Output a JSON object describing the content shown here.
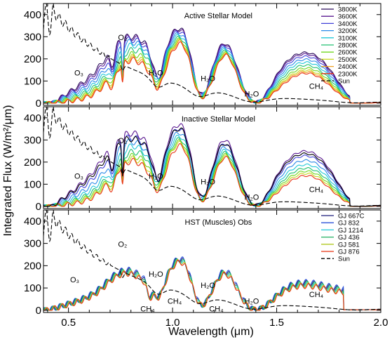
{
  "figure": {
    "ylabel": "Integrated Flux (W/m²/μm)",
    "xlabel": "Wavelength (μm)"
  },
  "chart_data": [
    {
      "type": "line",
      "title": "Active Stellar Model",
      "xlim": [
        0.38,
        2.0
      ],
      "ylim": [
        -10,
        450
      ],
      "yticks": [
        0,
        100,
        200,
        300,
        400
      ],
      "legend_position": "top-right",
      "annotations": [
        {
          "text": "O₃",
          "x": 0.55,
          "y": 125
        },
        {
          "text": "O₂",
          "x": 0.76,
          "y": 285
        },
        {
          "text": "H₂O",
          "x": 0.92,
          "y": 125
        },
        {
          "text": "H₂O",
          "x": 1.17,
          "y": 100
        },
        {
          "text": "H₂O",
          "x": 1.38,
          "y": 30
        },
        {
          "text": "CH₄",
          "x": 1.69,
          "y": 65
        }
      ],
      "series": [
        {
          "name": "3800K",
          "color": "#2a0a5a",
          "kind": "stellar",
          "s": 0.9,
          "peak": 0.72,
          "h2o": 0.3
        },
        {
          "name": "3600K",
          "color": "#5a1890",
          "kind": "stellar",
          "s": 0.84,
          "peak": 0.74,
          "h2o": 0.36
        },
        {
          "name": "3400K",
          "color": "#4040d8",
          "kind": "stellar",
          "s": 0.76,
          "peak": 0.76,
          "h2o": 0.42
        },
        {
          "name": "3200K",
          "color": "#2a8ae8",
          "kind": "stellar",
          "s": 0.66,
          "peak": 0.78,
          "h2o": 0.48
        },
        {
          "name": "3100K",
          "color": "#20c8d8",
          "kind": "stellar",
          "s": 0.56,
          "peak": 0.8,
          "h2o": 0.55
        },
        {
          "name": "2800K",
          "color": "#20c070",
          "kind": "stellar",
          "s": 0.46,
          "peak": 0.82,
          "h2o": 0.62
        },
        {
          "name": "2600K",
          "color": "#70d820",
          "kind": "stellar",
          "s": 0.36,
          "peak": 0.84,
          "h2o": 0.7
        },
        {
          "name": "2500K",
          "color": "#c8d820",
          "kind": "stellar",
          "s": 0.28,
          "peak": 0.86,
          "h2o": 0.78
        },
        {
          "name": "2400K",
          "color": "#f0a020",
          "kind": "stellar",
          "s": 0.22,
          "peak": 0.88,
          "h2o": 0.86
        },
        {
          "name": "2300K",
          "color": "#e83010",
          "kind": "stellar",
          "s": 0.16,
          "peak": 0.9,
          "h2o": 0.95
        },
        {
          "name": "Sun",
          "color": "#000000",
          "kind": "sun",
          "dashed": true
        }
      ]
    },
    {
      "type": "line",
      "title": "Inactive Stellar Model",
      "xlim": [
        0.38,
        2.0
      ],
      "ylim": [
        -10,
        450
      ],
      "yticks": [
        0,
        100,
        200,
        300,
        400
      ],
      "annotations": [
        {
          "text": "O₃",
          "x": 0.55,
          "y": 125
        },
        {
          "text": "O₂",
          "x": 0.76,
          "y": 285
        },
        {
          "text": "H₂O",
          "x": 0.92,
          "y": 125
        },
        {
          "text": "H₂O",
          "x": 1.17,
          "y": 100
        },
        {
          "text": "H₂O",
          "x": 1.38,
          "y": 30
        },
        {
          "text": "CH₄",
          "x": 1.69,
          "y": 65
        }
      ],
      "series": [
        {
          "color": "#5a1890",
          "kind": "stellar",
          "s": 1.0,
          "peak": 0.8,
          "h2o": 0.55
        },
        {
          "color": "#4040d8",
          "kind": "stellar",
          "s": 0.85,
          "peak": 0.82,
          "h2o": 0.6
        },
        {
          "color": "#2a8ae8",
          "kind": "stellar",
          "s": 0.7,
          "peak": 0.84,
          "h2o": 0.66
        },
        {
          "color": "#20c8d8",
          "kind": "stellar",
          "s": 0.56,
          "peak": 0.86,
          "h2o": 0.72
        },
        {
          "color": "#20c070",
          "kind": "stellar",
          "s": 0.44,
          "peak": 0.88,
          "h2o": 0.78
        },
        {
          "color": "#70d820",
          "kind": "stellar",
          "s": 0.34,
          "peak": 0.9,
          "h2o": 0.84
        },
        {
          "color": "#c8d820",
          "kind": "stellar",
          "s": 0.26,
          "peak": 0.92,
          "h2o": 0.9
        },
        {
          "color": "#e83010",
          "kind": "stellar",
          "s": 0.18,
          "peak": 0.94,
          "h2o": 0.97
        },
        {
          "color": "#000000",
          "kind": "stellar",
          "s": 0.95,
          "peak": 0.7,
          "h2o": 0.4
        },
        {
          "color": "#000000",
          "kind": "sun",
          "dashed": true
        }
      ]
    },
    {
      "type": "line",
      "title": "HST (Muscles) Obs",
      "xlim": [
        0.38,
        2.0
      ],
      "ylim": [
        -10,
        450
      ],
      "yticks": [
        0,
        100,
        200,
        300,
        400
      ],
      "legend_position": "top-right",
      "annotations": [
        {
          "text": "O₃",
          "x": 0.53,
          "y": 125
        },
        {
          "text": "O₂",
          "x": 0.76,
          "y": 285
        },
        {
          "text": "H₂O",
          "x": 0.92,
          "y": 150
        },
        {
          "text": "CH₄",
          "x": 0.88,
          "y": -5
        },
        {
          "text": "CH₄",
          "x": 1.01,
          "y": 30
        },
        {
          "text": "H₂O",
          "x": 1.17,
          "y": 100
        },
        {
          "text": "CH₄",
          "x": 1.21,
          "y": -5
        },
        {
          "text": "H₂O",
          "x": 1.38,
          "y": 30
        },
        {
          "text": "CH₄",
          "x": 1.69,
          "y": 60
        }
      ],
      "series": [
        {
          "name": "GJ 667C",
          "color": "#1a1a7a",
          "kind": "obs",
          "s": 0.55
        },
        {
          "name": "GJ 832",
          "color": "#2a50d8",
          "kind": "obs",
          "s": 0.6
        },
        {
          "name": "GJ 1214",
          "color": "#20c8d8",
          "kind": "obs",
          "s": 0.45
        },
        {
          "name": "GJ 436",
          "color": "#20b060",
          "kind": "obs",
          "s": 0.5
        },
        {
          "name": "GJ 581",
          "color": "#b0c820",
          "kind": "obs",
          "s": 0.4
        },
        {
          "name": "GJ 876",
          "color": "#e83010",
          "kind": "obs",
          "s": 0.35
        },
        {
          "name": "Sun",
          "color": "#000000",
          "kind": "sun",
          "dashed": true
        }
      ]
    }
  ],
  "xaxis": {
    "ticks": [
      0.5,
      1.0,
      1.5,
      2.0
    ],
    "tick_labels": [
      "0.5",
      "1.0",
      "1.5",
      "2.0"
    ]
  }
}
